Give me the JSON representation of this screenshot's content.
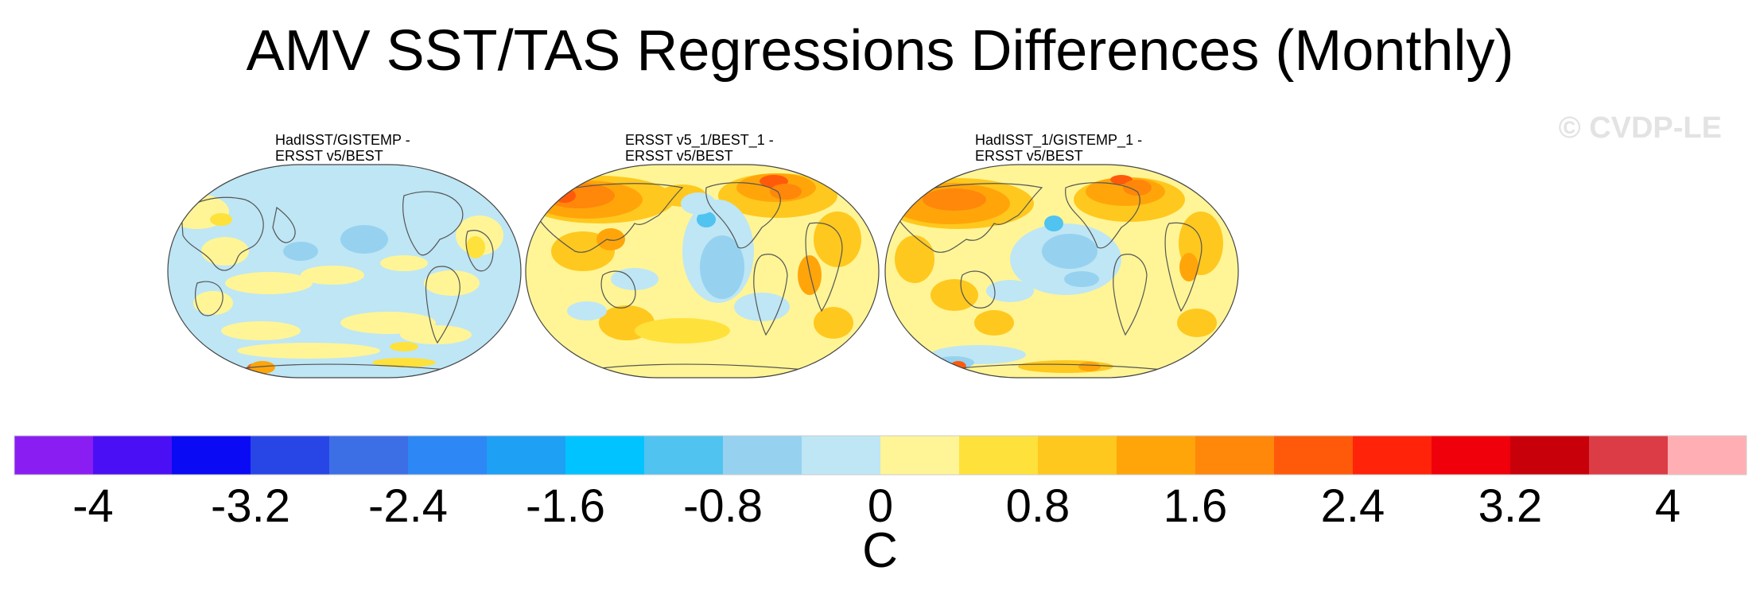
{
  "title": "AMV SST/TAS Regressions Differences (Monthly)",
  "watermark": "© CVDP-LE",
  "panels": [
    {
      "line1": "HadISST/GISTEMP -",
      "line2": "ERSST v5/BEST"
    },
    {
      "line1": "ERSST v5_1/BEST_1 -",
      "line2": "ERSST v5/BEST"
    },
    {
      "line1": "HadISST_1/GISTEMP_1 -",
      "line2": "ERSST v5/BEST"
    }
  ],
  "chart_data": {
    "type": "heatmap",
    "colorbar": {
      "unit_label": "C",
      "range": [
        -4.4,
        4.4
      ],
      "levels": [
        -4,
        -3.6,
        -3.2,
        -2.8,
        -2.4,
        -2,
        -1.6,
        -1.2,
        -0.8,
        -0.4,
        0,
        0.4,
        0.8,
        1.2,
        1.6,
        2,
        2.4,
        2.8,
        3.2,
        3.6,
        4
      ],
      "tick_labels": [
        "-4",
        "-3.2",
        "-2.4",
        "-1.6",
        "-0.8",
        "0",
        "0.8",
        "1.6",
        "2.4",
        "3.2",
        "4"
      ],
      "colors": [
        "#8a1ef2",
        "#4b0ff5",
        "#0a0af5",
        "#2846e6",
        "#3c6ee6",
        "#2d87f5",
        "#1ea0f5",
        "#00c3ff",
        "#50c3f0",
        "#96d2f0",
        "#bee6f5",
        "#fff596",
        "#ffe13c",
        "#ffc81e",
        "#ffa50a",
        "#ff870a",
        "#ff5a0a",
        "#ff230a",
        "#f0000a",
        "#c8000a",
        "#dc3c46",
        "#ffafb4"
      ]
    }
  }
}
